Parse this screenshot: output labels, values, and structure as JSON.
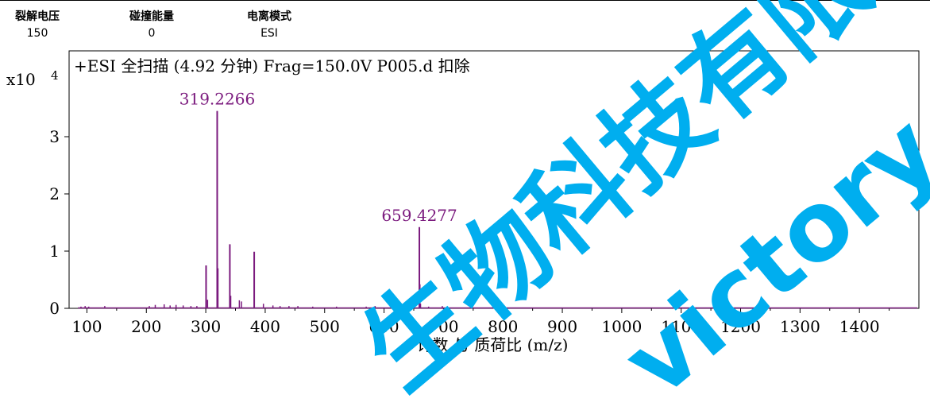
{
  "header": [
    {
      "label": "裂解电压",
      "value": "150"
    },
    {
      "label": "碰撞能量",
      "value": "0"
    },
    {
      "label": "电离模式",
      "value": "ESI"
    }
  ],
  "watermark": {
    "line1": "生物科技有限",
    "line2": "victory.c",
    "color": "#00aeef"
  },
  "chart_data": {
    "type": "bar",
    "title": "+ESI 全扫描 (4.92 分钟) Frag=150.0V P005.d 扣除",
    "xlabel": "计数 与 质荷比 (m/z)",
    "y_multiplier_label": "x10",
    "y_exponent_label": "4",
    "xlim": [
      70,
      1500
    ],
    "ylim": [
      0,
      4.5
    ],
    "x_ticks": [
      100,
      200,
      300,
      400,
      500,
      600,
      700,
      800,
      900,
      1000,
      1100,
      1200,
      1300,
      1400
    ],
    "y_ticks": [
      0,
      1,
      2,
      3
    ],
    "grid": false,
    "color": "#7b1a7e",
    "peaks": [
      {
        "mz": 300.5,
        "value": 0.75
      },
      {
        "mz": 303.0,
        "value": 0.15
      },
      {
        "mz": 319.2266,
        "value": 3.45,
        "label": "319.2266"
      },
      {
        "mz": 320.2,
        "value": 0.7
      },
      {
        "mz": 340.5,
        "value": 1.12
      },
      {
        "mz": 342.0,
        "value": 0.22
      },
      {
        "mz": 356.5,
        "value": 0.14
      },
      {
        "mz": 360.0,
        "value": 0.12
      },
      {
        "mz": 381.5,
        "value": 0.99
      },
      {
        "mz": 397.0,
        "value": 0.08
      },
      {
        "mz": 659.4277,
        "value": 1.42,
        "label": "659.4277"
      },
      {
        "mz": 660.4,
        "value": 0.42
      },
      {
        "mz": 661.4,
        "value": 0.08
      },
      {
        "mz": 90,
        "value": 0.03
      },
      {
        "mz": 97,
        "value": 0.04
      },
      {
        "mz": 103,
        "value": 0.03
      },
      {
        "mz": 130,
        "value": 0.04
      },
      {
        "mz": 205,
        "value": 0.04
      },
      {
        "mz": 215,
        "value": 0.06
      },
      {
        "mz": 230,
        "value": 0.07
      },
      {
        "mz": 240,
        "value": 0.05
      },
      {
        "mz": 250,
        "value": 0.06
      },
      {
        "mz": 262,
        "value": 0.05
      },
      {
        "mz": 275,
        "value": 0.04
      },
      {
        "mz": 285,
        "value": 0.04
      },
      {
        "mz": 413,
        "value": 0.05
      },
      {
        "mz": 425,
        "value": 0.04
      },
      {
        "mz": 440,
        "value": 0.04
      },
      {
        "mz": 455,
        "value": 0.04
      },
      {
        "mz": 480,
        "value": 0.03
      },
      {
        "mz": 520,
        "value": 0.03
      },
      {
        "mz": 570,
        "value": 0.03
      },
      {
        "mz": 585,
        "value": 0.04
      },
      {
        "mz": 622,
        "value": 0.03
      },
      {
        "mz": 640,
        "value": 0.03
      },
      {
        "mz": 675,
        "value": 0.03
      },
      {
        "mz": 698,
        "value": 0.04
      }
    ]
  }
}
